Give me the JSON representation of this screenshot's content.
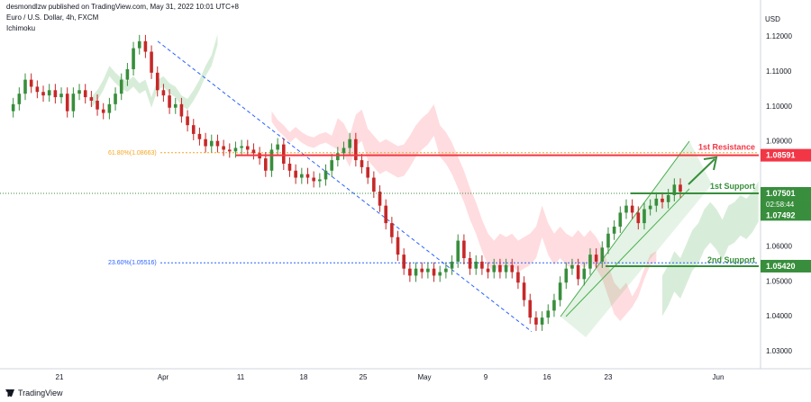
{
  "header": {
    "line1": "desmondlzw published on TradingView.com, May 31, 2022 10:01 UTC+8",
    "line2": "Euro / U.S. Dollar, 4h, FXCM",
    "line3": "Ichimoku"
  },
  "footer": {
    "brand": "TradingView"
  },
  "chart_data": {
    "type": "line",
    "style": "candlestick",
    "currency_label": "USD",
    "ylim": [
      1.024,
      1.124
    ],
    "y_ticks": [
      {
        "value": 1.12,
        "label": "1.12000"
      },
      {
        "value": 1.11,
        "label": "1.11000"
      },
      {
        "value": 1.1,
        "label": "1.10000"
      },
      {
        "value": 1.09,
        "label": "1.09000"
      },
      {
        "value": 1.06,
        "label": "1.06000"
      },
      {
        "value": 1.05,
        "label": "1.05000"
      },
      {
        "value": 1.04,
        "label": "1.04000"
      },
      {
        "value": 1.03,
        "label": "1.03000"
      }
    ],
    "x_ticks": [
      "21",
      "Apr",
      "11",
      "18",
      "25",
      "May",
      "9",
      "16",
      "23",
      "Jun"
    ],
    "series": [
      {
        "key": "price",
        "values": [
          1.0985,
          1.1005,
          1.1035,
          1.1075,
          1.1055,
          1.104,
          1.103,
          1.1045,
          1.1025,
          1.1035,
          1.0985,
          1.1035,
          1.1045,
          1.1025,
          1.1015,
          1.099,
          1.098,
          1.1005,
          1.1035,
          1.1075,
          1.1105,
          1.1165,
          1.1185,
          1.1155,
          1.1095,
          1.1045,
          1.103,
          1.0995,
          1.1005,
          1.097,
          1.0945,
          1.092,
          1.0905,
          1.0885,
          1.09,
          1.0885,
          1.0875,
          1.087,
          1.088,
          1.0885,
          1.0875,
          1.0865,
          1.085,
          1.0815,
          1.0875,
          1.089,
          1.0835,
          1.0815,
          1.0795,
          1.0805,
          1.0795,
          1.0785,
          1.079,
          1.0815,
          1.0845,
          1.0865,
          1.088,
          1.0905,
          1.0845,
          1.0825,
          1.0795,
          1.0755,
          1.0715,
          1.0665,
          1.0625,
          1.0575,
          1.0535,
          1.0515,
          1.0535,
          1.0525,
          1.0535,
          1.0515,
          1.0525,
          1.0535,
          1.0555,
          1.0615,
          1.0565,
          1.0535,
          1.0555,
          1.0535,
          1.0525,
          1.0545,
          1.0525,
          1.0545,
          1.0525,
          1.0495,
          1.0445,
          1.0395,
          1.0375,
          1.0395,
          1.0415,
          1.0445,
          1.0495,
          1.0535,
          1.0545,
          1.0505,
          1.0535,
          1.0575,
          1.0555,
          1.0595,
          1.0635,
          1.0655,
          1.0695,
          1.0715,
          1.0695,
          1.0665,
          1.0705,
          1.0715,
          1.0735,
          1.0725,
          1.0745,
          1.0775,
          1.0755
        ]
      },
      {
        "key": "trendline",
        "values": [
          [
            1.1185,
            1.0355
          ]
        ]
      }
    ],
    "levels": [
      {
        "name": "1st Resistance",
        "value": 1.08591,
        "label": "1.08591",
        "color": "#f23645"
      },
      {
        "name": "1st Support",
        "value": 1.07501,
        "label": "1.07501",
        "color": "#388e3c"
      },
      {
        "name": "2nd Support",
        "value": 1.0542,
        "label": "1.05420",
        "color": "#388e3c"
      }
    ],
    "fibonacci": [
      {
        "label": "61.80%(1.08663)",
        "value": 1.08663,
        "color": "#f5a623"
      },
      {
        "label": "23.60%(1.05516)",
        "value": 1.05516,
        "color": "#2962ff"
      }
    ],
    "last_price": {
      "value": 1.07501,
      "label": "1.07501",
      "countdown": "02:58:44",
      "color": "#388e3c"
    },
    "secondary_price": {
      "value": 1.07492,
      "label": "1.07492",
      "color": "#388e3c"
    },
    "channel": {
      "color": "#4caf50",
      "fill": "rgba(76,175,80,0.15)"
    },
    "projection_arrow_color": "#388e3c",
    "colors": {
      "up": "#26a69a",
      "down": "#ef5350",
      "candle_up": "#388e3c",
      "candle_down": "#c62828",
      "cloud_bull": "#c8e6c9",
      "cloud_bear": "#ffcdd2"
    }
  }
}
